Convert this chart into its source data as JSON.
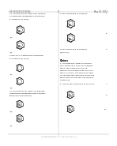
{
  "background_color": "#f5f5f0",
  "text_color": "#111111",
  "gray_color": "#666666",
  "header_left": "US 2012/0123130 A1",
  "header_right": "May 18, 2012",
  "page_num": "31",
  "col_divider": 0.5
}
